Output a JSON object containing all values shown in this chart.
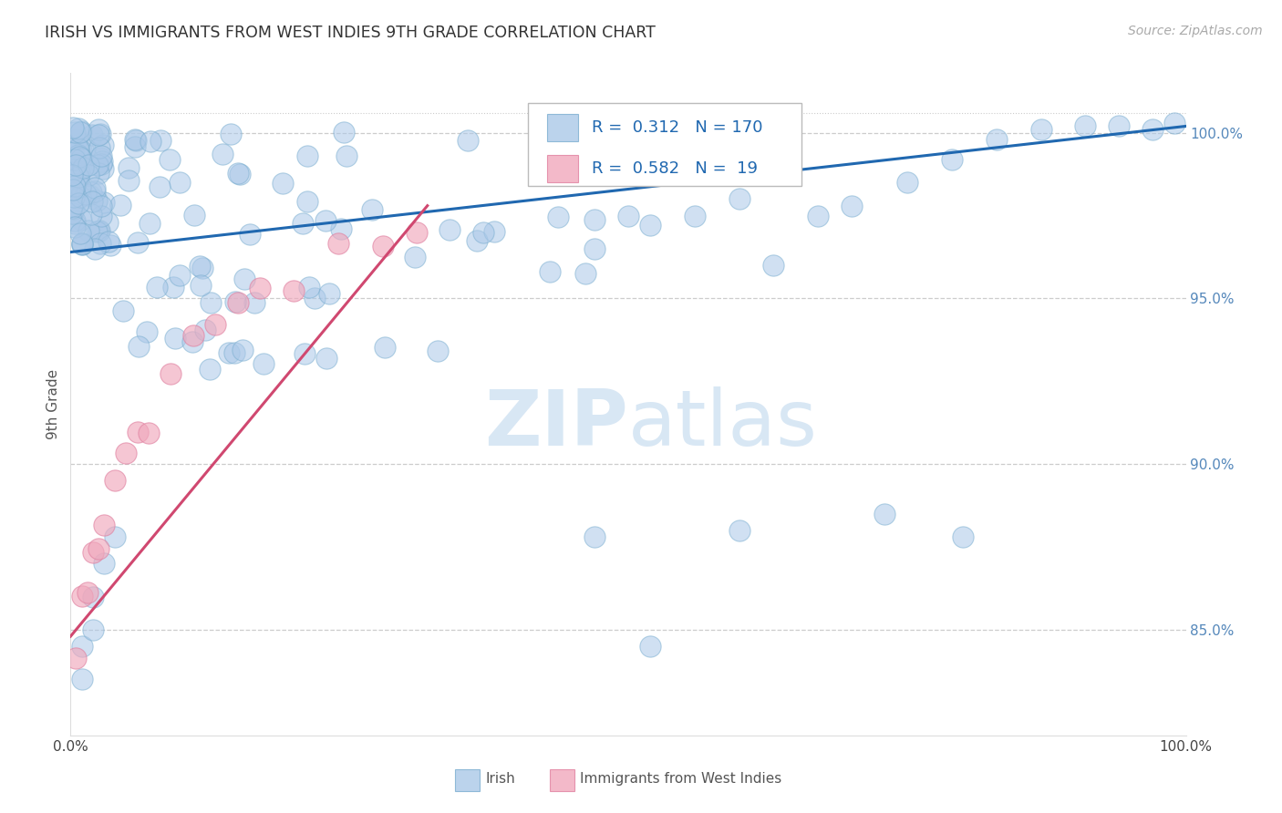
{
  "title": "IRISH VS IMMIGRANTS FROM WEST INDIES 9TH GRADE CORRELATION CHART",
  "source": "Source: ZipAtlas.com",
  "ylabel": "9th Grade",
  "xlim": [
    0.0,
    1.0
  ],
  "ylim": [
    0.818,
    1.018
  ],
  "ytick_values": [
    0.85,
    0.9,
    0.95,
    1.0
  ],
  "ytick_labels": [
    "85.0%",
    "90.0%",
    "95.0%",
    "100.0%"
  ],
  "legend_irish_R": "0.312",
  "legend_irish_N": "170",
  "legend_wi_R": "0.582",
  "legend_wi_N": "19",
  "blue_fill": "#aac8e8",
  "blue_edge": "#7aaed0",
  "blue_line": "#2068b0",
  "pink_fill": "#f0a8bc",
  "pink_edge": "#e080a0",
  "pink_line": "#d04870",
  "background_color": "#ffffff",
  "grid_color": "#cccccc",
  "watermark_color": "#c8ddf0",
  "irish_line_x0": 0.0,
  "irish_line_y0": 0.964,
  "irish_line_x1": 1.0,
  "irish_line_y1": 1.002,
  "wi_line_x0": 0.0,
  "wi_line_y0": 0.848,
  "wi_line_x1": 0.32,
  "wi_line_y1": 0.978
}
